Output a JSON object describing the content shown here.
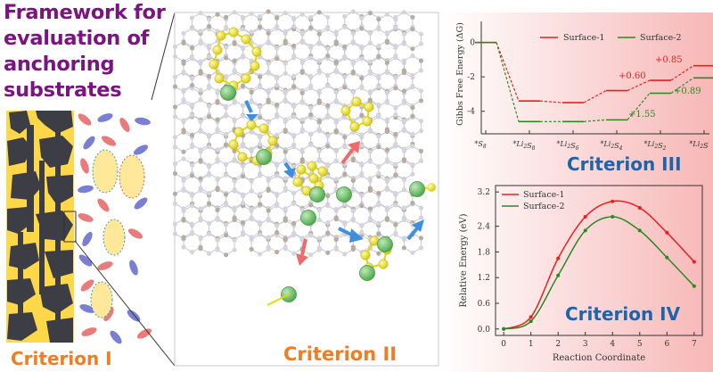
{
  "title_lines": [
    "Framework for",
    "evaluation of",
    "anchoring",
    "substrates"
  ],
  "criteria": {
    "c1": "Criterion I",
    "c2": "Criterion II",
    "c3": "Criterion III",
    "c4": "Criterion IV"
  },
  "colors": {
    "title": "#7b1380",
    "criterion_label_orange": "#f07d24",
    "criterion_label_blue": "#1f63a8",
    "surface1": "#e8201c",
    "surface2": "#2b8a1f",
    "sulfur": "#f2e51c",
    "lithium": "#6ec46a",
    "substrate_panel_bg": "#ffd84a",
    "substrate_dark": "#3d3d45"
  },
  "chart_data": [
    {
      "type": "line",
      "ylabel": "Gibbs Free Energy (ΔG)",
      "categories": [
        "*S8",
        "*Li2S8",
        "*Li2S6",
        "*Li2S4",
        "*Li2S2",
        "*Li2S"
      ],
      "ylim": [
        -5,
        0.5
      ],
      "yticks": [
        0,
        -2,
        -4
      ],
      "series": [
        {
          "name": "Surface-1",
          "values": [
            0,
            -3.4,
            -3.5,
            -2.8,
            -2.2,
            -1.35
          ]
        },
        {
          "name": "Surface-2",
          "values": [
            0,
            -4.6,
            -4.6,
            -4.5,
            -2.95,
            -2.06
          ]
        }
      ],
      "annotations": [
        "+0.85",
        "+0.60",
        "+0.89",
        "+1.55"
      ],
      "legend": "top-right"
    },
    {
      "type": "line",
      "xlabel": "Reaction Coordinate",
      "ylabel": "Relative Energy (eV)",
      "x": [
        0,
        1,
        2,
        3,
        4,
        5,
        6,
        7
      ],
      "xlim": [
        -0.3,
        7.3
      ],
      "ylim": [
        -0.15,
        3.35
      ],
      "xticks": [
        0,
        1,
        2,
        3,
        4,
        5,
        6,
        7
      ],
      "yticks": [
        "0.0",
        "0.6",
        "1.2",
        "1.8",
        "2.4",
        "3.2"
      ],
      "series": [
        {
          "name": "Surface-1",
          "values": [
            0,
            0.28,
            1.65,
            2.62,
            2.98,
            2.83,
            2.25,
            1.57
          ]
        },
        {
          "name": "Surface-2",
          "values": [
            0,
            0.18,
            1.25,
            2.3,
            2.62,
            2.3,
            1.67,
            1.0
          ]
        }
      ],
      "legend": "top-left"
    }
  ]
}
